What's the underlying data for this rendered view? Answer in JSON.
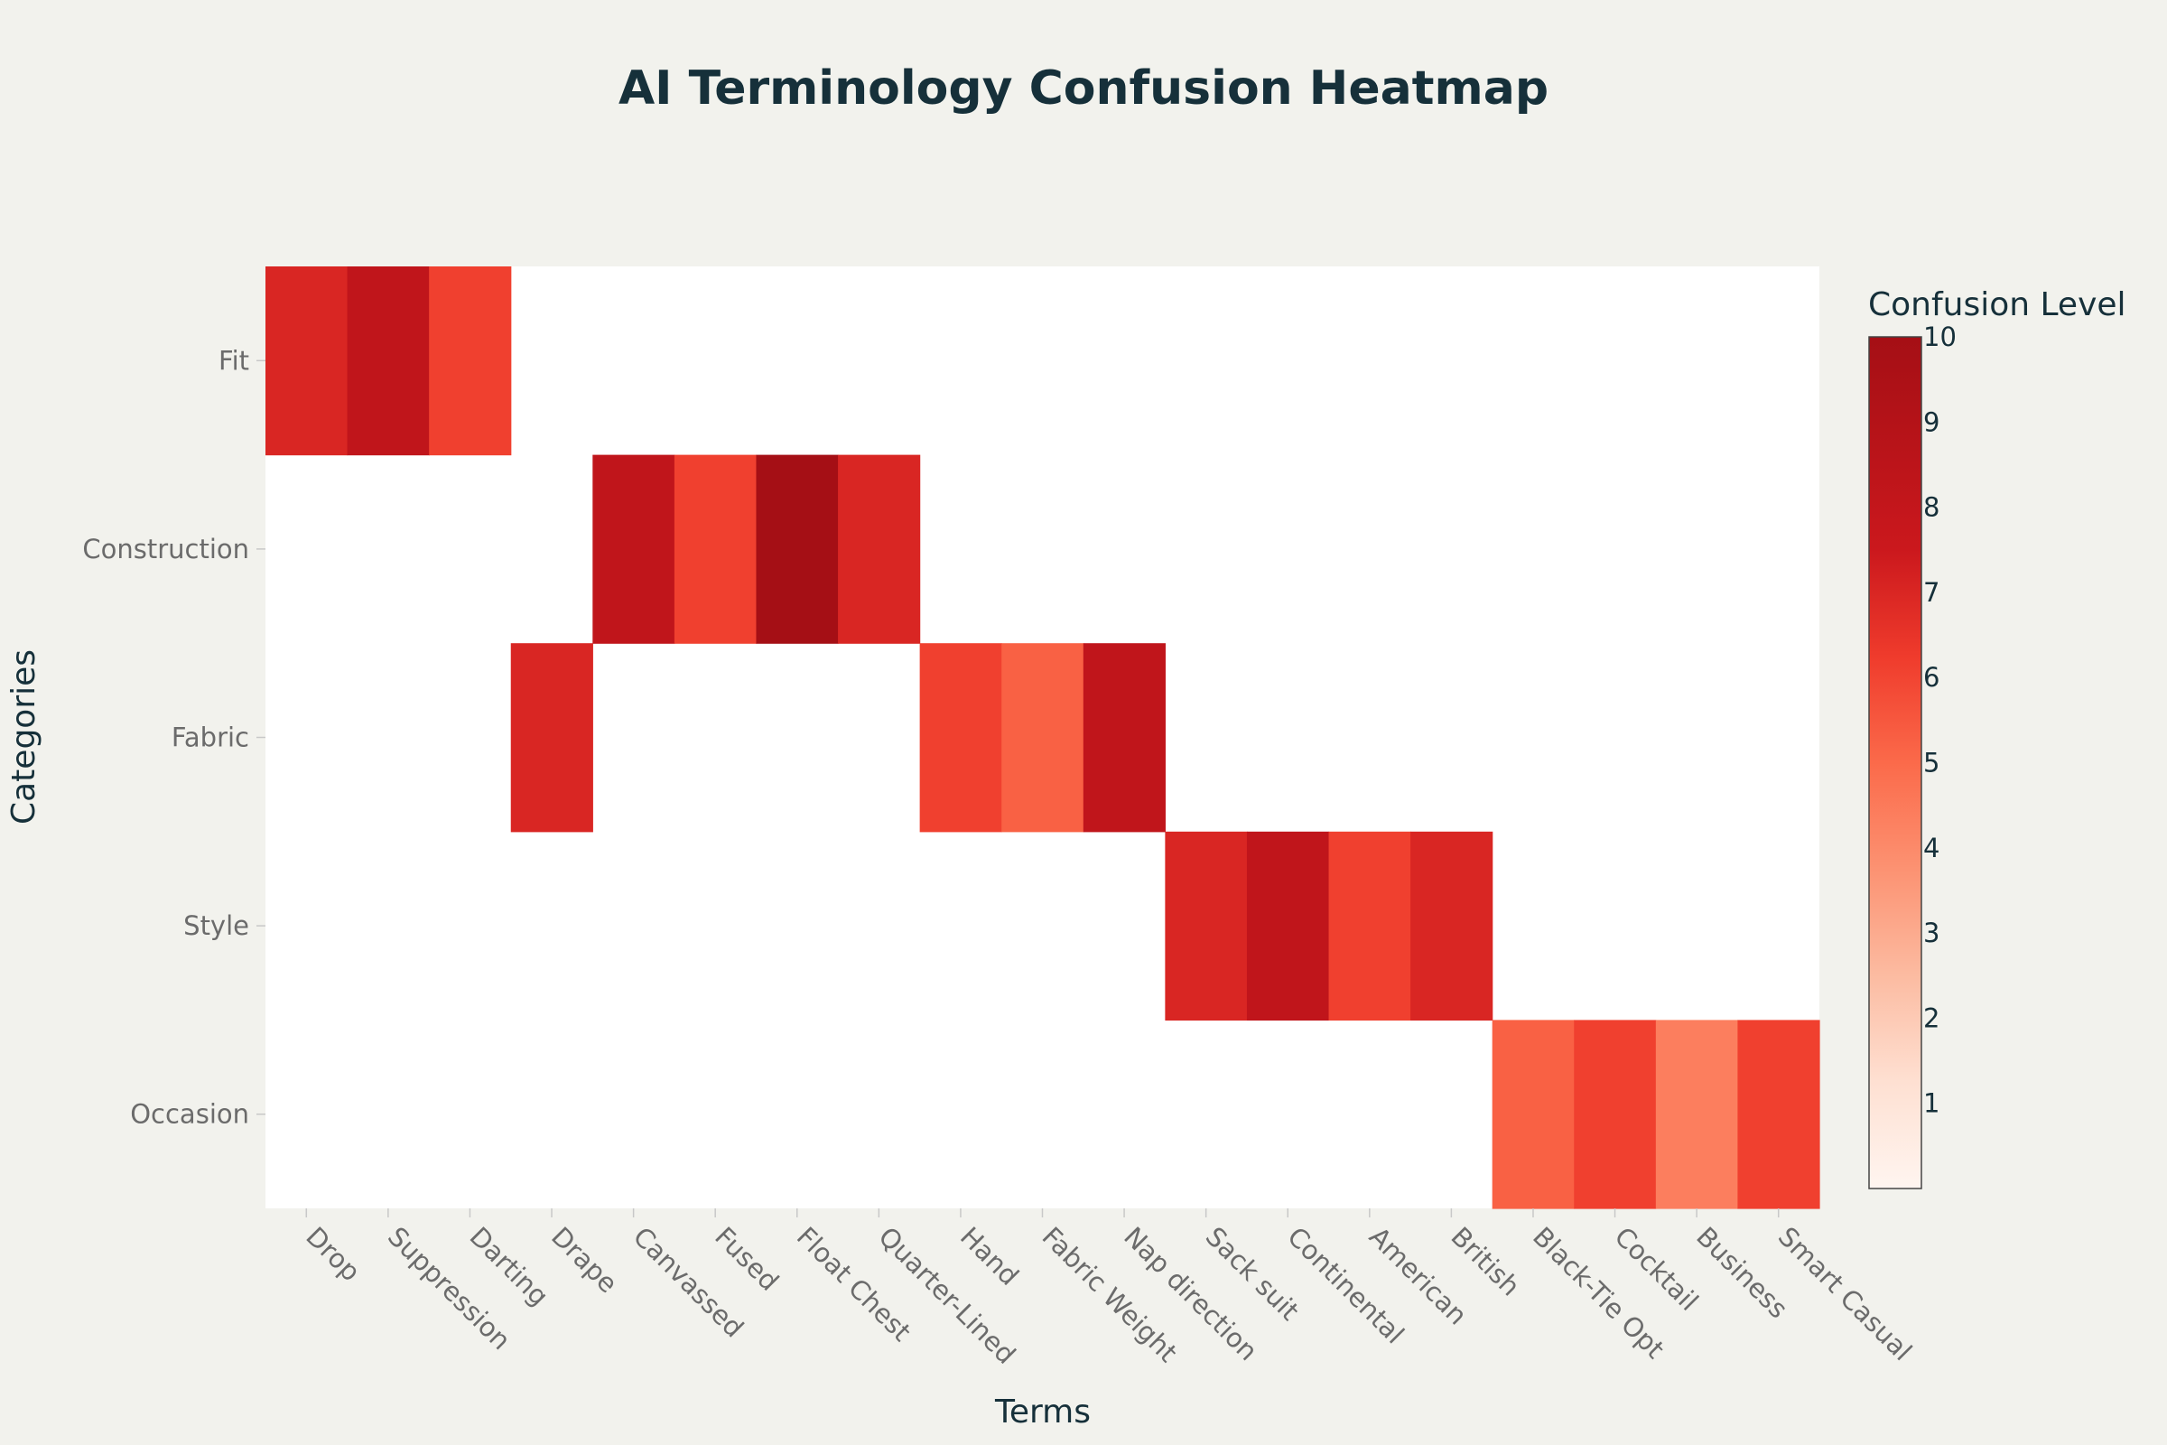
{
  "chart_data": {
    "type": "heatmap",
    "title": "AI Terminology Confusion Heatmap",
    "xlabel": "Terms",
    "ylabel": "Categories",
    "x": [
      "Drop",
      "Suppression",
      "Darting",
      "Drape",
      "Canvassed",
      "Fused",
      "Float Chest",
      "Quarter-Lined",
      "Hand",
      "Fabric Weight",
      "Nap direction",
      "Sack suit",
      "Continental",
      "American",
      "British",
      "Black-Tie Opt",
      "Cocktail",
      "Business",
      "Smart Casual"
    ],
    "y": [
      "Fit",
      "Construction",
      "Fabric",
      "Style",
      "Occasion"
    ],
    "z": [
      [
        8,
        9,
        7,
        null,
        null,
        null,
        null,
        null,
        null,
        null,
        null,
        null,
        null,
        null,
        null,
        null,
        null,
        null,
        null
      ],
      [
        null,
        null,
        null,
        null,
        9,
        7,
        10,
        8,
        null,
        null,
        null,
        null,
        null,
        null,
        null,
        null,
        null,
        null,
        null
      ],
      [
        null,
        null,
        null,
        8,
        null,
        null,
        null,
        null,
        7,
        6,
        9,
        null,
        null,
        null,
        null,
        null,
        null,
        null,
        null
      ],
      [
        null,
        null,
        null,
        null,
        null,
        null,
        null,
        null,
        null,
        null,
        null,
        8,
        9,
        7,
        8,
        null,
        null,
        null,
        null
      ],
      [
        null,
        null,
        null,
        null,
        null,
        null,
        null,
        null,
        null,
        null,
        null,
        null,
        null,
        null,
        null,
        6,
        7,
        5,
        7
      ]
    ],
    "colorbar": {
      "title": "Confusion Level",
      "range": [
        0,
        10
      ],
      "ticks": [
        "1",
        "2",
        "3",
        "4",
        "5",
        "6",
        "7",
        "8",
        "9",
        "10"
      ],
      "colorscale": [
        "#fff5f0",
        "#fee0d2",
        "#fcbba1",
        "#fc9272",
        "#fb6a4a",
        "#ef3b2c",
        "#cb181d",
        "#a50f15"
      ]
    },
    "grid": false,
    "legend": "right"
  }
}
